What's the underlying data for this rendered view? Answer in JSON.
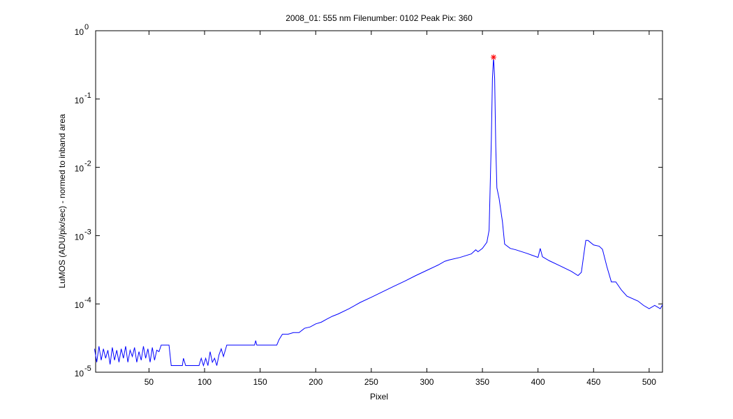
{
  "chart_data": {
    "type": "line",
    "title": "2008_01: 555 nm  Filenumber: 0102 Peak Pix: 360",
    "x_label": "Pixel",
    "y_label": "LuMOS (ADU/pix/sec) - normed to inband area",
    "log_y": true,
    "xlim": [
      2,
      512
    ],
    "ylim": [
      1e-05,
      1
    ],
    "xticks": [
      50,
      100,
      150,
      200,
      250,
      300,
      350,
      400,
      450,
      500
    ],
    "yticks": [
      {
        "value": 1,
        "label": "10",
        "exponent": "0"
      },
      {
        "value": 0.1,
        "label": "10",
        "exponent": "-1"
      },
      {
        "value": 0.01,
        "label": "10",
        "exponent": "-2"
      },
      {
        "value": 0.001,
        "label": "10",
        "exponent": "-3"
      },
      {
        "value": 0.0001,
        "label": "10",
        "exponent": "-4"
      },
      {
        "value": 1e-05,
        "label": "10",
        "exponent": "-5"
      }
    ],
    "x": [
      1,
      3,
      5,
      7,
      9,
      11,
      13,
      15,
      17,
      19,
      21,
      23,
      25,
      27,
      29,
      31,
      33,
      35,
      37,
      39,
      41,
      43,
      45,
      47,
      49,
      51,
      53,
      55,
      57,
      59,
      61,
      63,
      65,
      68,
      70,
      72,
      80,
      81,
      83,
      85,
      95,
      97,
      99,
      101,
      103,
      105,
      107,
      109,
      111,
      113,
      115,
      117,
      120,
      145,
      146,
      147,
      165,
      167,
      170,
      175,
      180,
      185,
      190,
      195,
      200,
      205,
      210,
      215,
      220,
      230,
      240,
      250,
      260,
      270,
      280,
      290,
      300,
      310,
      316,
      320,
      330,
      340,
      344,
      346,
      350,
      354,
      356,
      358,
      359,
      360,
      361,
      362,
      363,
      365,
      368,
      370,
      375,
      380,
      390,
      400,
      402,
      404,
      410,
      420,
      430,
      436,
      439,
      441,
      443,
      445,
      450,
      455,
      458,
      462,
      466,
      470,
      475,
      480,
      490,
      495,
      500,
      505,
      510,
      512
    ],
    "series": [
      {
        "color": "#0000ff",
        "values": [
          2.2e-05,
          1.4e-05,
          2.4e-05,
          1.5e-05,
          2.2e-05,
          1.6e-05,
          2.1e-05,
          1.3e-05,
          2.3e-05,
          1.5e-05,
          2.1e-05,
          1.4e-05,
          2.2e-05,
          1.6e-05,
          2.4e-05,
          1.4e-05,
          2.1e-05,
          1.7e-05,
          2.3e-05,
          1.4e-05,
          2e-05,
          1.5e-05,
          2.4e-05,
          1.6e-05,
          2.2e-05,
          1.4e-05,
          2.3e-05,
          1.5e-05,
          2.1e-05,
          2e-05,
          2.5e-05,
          2.5e-05,
          2.5e-05,
          2.5e-05,
          1.25e-05,
          1.25e-05,
          1.25e-05,
          1.6e-05,
          1.25e-05,
          1.25e-05,
          1.25e-05,
          1.6e-05,
          1.25e-05,
          1.6e-05,
          1.25e-05,
          2e-05,
          1.4e-05,
          1.6e-05,
          1.25e-05,
          1.8e-05,
          2.2e-05,
          1.7e-05,
          2.5e-05,
          2.5e-05,
          2.9e-05,
          2.5e-05,
          2.5e-05,
          3e-05,
          3.6e-05,
          3.6e-05,
          3.8e-05,
          3.8e-05,
          4.4e-05,
          4.6e-05,
          5.1e-05,
          5.4e-05,
          6e-05,
          6.6e-05,
          7.1e-05,
          8.5e-05,
          0.000105,
          0.000125,
          0.00015,
          0.00018,
          0.000215,
          0.00026,
          0.00031,
          0.00037,
          0.00042,
          0.00044,
          0.00048,
          0.00054,
          0.00062,
          0.00058,
          0.00065,
          0.0008,
          0.0012,
          0.025,
          0.2,
          0.41,
          0.2,
          0.02,
          0.005,
          0.0035,
          0.0016,
          0.00075,
          0.00065,
          0.00062,
          0.00055,
          0.00048,
          0.00065,
          0.00049,
          0.00043,
          0.00036,
          0.0003,
          0.00026,
          0.00029,
          0.0005,
          0.00085,
          0.00085,
          0.00073,
          0.0007,
          0.00063,
          0.00035,
          0.00021,
          0.00021,
          0.00016,
          0.00013,
          0.00011,
          9.5e-05,
          8.5e-05,
          9.5e-05,
          8.5e-05,
          9.7e-05
        ]
      }
    ],
    "peak": {
      "x": 360,
      "value": 0.41,
      "color": "#ff0000"
    }
  }
}
